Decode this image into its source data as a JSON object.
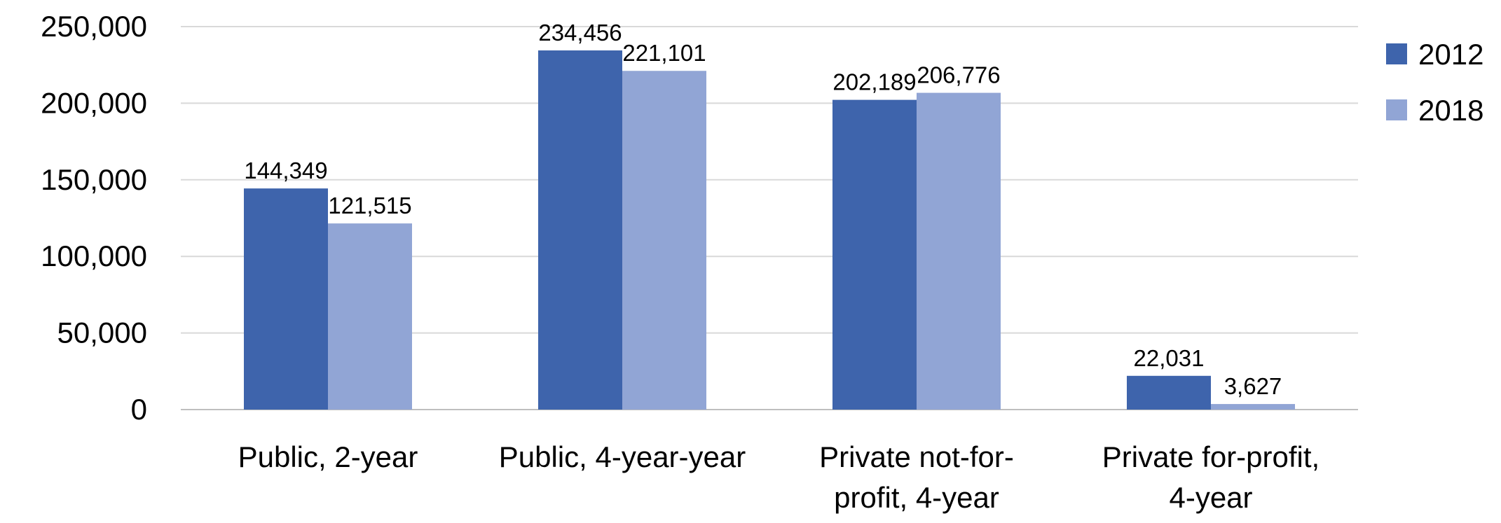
{
  "chart_data": {
    "type": "bar",
    "title": "",
    "xlabel": "",
    "ylabel": "",
    "categories": [
      [
        "Public, 2-year"
      ],
      [
        "Public, 4-year-year"
      ],
      [
        "Private not-for-",
        "profit, 4-year"
      ],
      [
        "Private for-profit,",
        "4-year"
      ]
    ],
    "series": [
      {
        "name": "2012",
        "color": "#3e64ac",
        "values": [
          144349,
          234456,
          202189,
          22031
        ],
        "labels": [
          "144,349",
          "234,456",
          "202,189",
          "22,031"
        ]
      },
      {
        "name": "2018",
        "color": "#91a5d5",
        "values": [
          121515,
          221101,
          206776,
          3627
        ],
        "labels": [
          "121,515",
          "221,101",
          "206,776",
          "3,627"
        ]
      }
    ],
    "ylim": [
      0,
      250000
    ],
    "yticks": [
      {
        "value": 0,
        "label": "0"
      },
      {
        "value": 50000,
        "label": "50,000"
      },
      {
        "value": 100000,
        "label": "100,000"
      },
      {
        "value": 150000,
        "label": "150,000"
      },
      {
        "value": 200000,
        "label": "200,000"
      },
      {
        "value": 250000,
        "label": "250,000"
      }
    ],
    "grid": true,
    "legend_position": "right"
  }
}
